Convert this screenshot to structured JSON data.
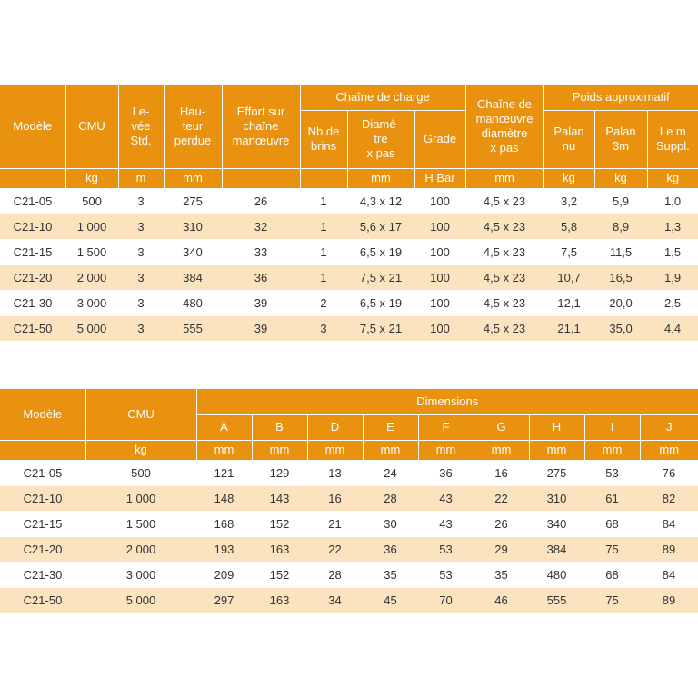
{
  "table1": {
    "headers": {
      "modele": "Modèle",
      "cmu": "CMU",
      "levee": "Le-\nvée\nStd.",
      "hauteur": "Hau-\nteur\nperdue",
      "effort": "Effort sur\nchaîne\nmanœuvre",
      "chaine_charge": "Chaîne de charge",
      "nb_brins": "Nb de\nbrins",
      "diametre": "Diamè-\ntre\nx pas",
      "grade": "Grade",
      "chaine_manoeuvre": "Chaîne de\nmanœuvre\ndiamètre\nx pas",
      "poids": "Poids approximatif",
      "palan_nu": "Palan\nnu",
      "palan_3m": "Palan\n3m",
      "le_m": "Le m\nSuppl."
    },
    "units": [
      "kg",
      "m",
      "mm",
      "",
      "",
      "mm",
      "H Bar",
      "mm",
      "kg",
      "kg",
      "kg"
    ],
    "rows": [
      [
        "C21-05",
        "500",
        "3",
        "275",
        "26",
        "1",
        "4,3 x 12",
        "100",
        "4,5 x 23",
        "3,2",
        "5,9",
        "1,0"
      ],
      [
        "C21-10",
        "1 000",
        "3",
        "310",
        "32",
        "1",
        "5,6 x 17",
        "100",
        "4,5 x 23",
        "5,8",
        "8,9",
        "1,3"
      ],
      [
        "C21-15",
        "1 500",
        "3",
        "340",
        "33",
        "1",
        "6,5 x 19",
        "100",
        "4,5 x 23",
        "7,5",
        "11,5",
        "1,5"
      ],
      [
        "C21-20",
        "2 000",
        "3",
        "384",
        "36",
        "1",
        "7,5 x 21",
        "100",
        "4,5 x 23",
        "10,7",
        "16,5",
        "1,9"
      ],
      [
        "C21-30",
        "3 000",
        "3",
        "480",
        "39",
        "2",
        "6,5 x 19",
        "100",
        "4,5 x 23",
        "12,1",
        "20,0",
        "2,5"
      ],
      [
        "C21-50",
        "5 000",
        "3",
        "555",
        "39",
        "3",
        "7,5 x 21",
        "100",
        "4,5 x 23",
        "21,1",
        "35,0",
        "4,4"
      ]
    ]
  },
  "table2": {
    "headers": {
      "modele": "Modèle",
      "cmu": "CMU",
      "dimensions": "Dimensions",
      "cols": [
        "A",
        "B",
        "D",
        "E",
        "F",
        "G",
        "H",
        "I",
        "J"
      ]
    },
    "units": [
      "kg",
      "mm",
      "mm",
      "mm",
      "mm",
      "mm",
      "mm",
      "mm",
      "mm",
      "mm"
    ],
    "rows": [
      [
        "C21-05",
        "500",
        "121",
        "129",
        "13",
        "24",
        "36",
        "16",
        "275",
        "53",
        "76"
      ],
      [
        "C21-10",
        "1 000",
        "148",
        "143",
        "16",
        "28",
        "43",
        "22",
        "310",
        "61",
        "82"
      ],
      [
        "C21-15",
        "1 500",
        "168",
        "152",
        "21",
        "30",
        "43",
        "26",
        "340",
        "68",
        "84"
      ],
      [
        "C21-20",
        "2 000",
        "193",
        "163",
        "22",
        "36",
        "53",
        "29",
        "384",
        "75",
        "89"
      ],
      [
        "C21-30",
        "3 000",
        "209",
        "152",
        "28",
        "35",
        "53",
        "35",
        "480",
        "68",
        "84"
      ],
      [
        "C21-50",
        "5 000",
        "297",
        "163",
        "34",
        "45",
        "70",
        "46",
        "555",
        "75",
        "89"
      ]
    ]
  }
}
